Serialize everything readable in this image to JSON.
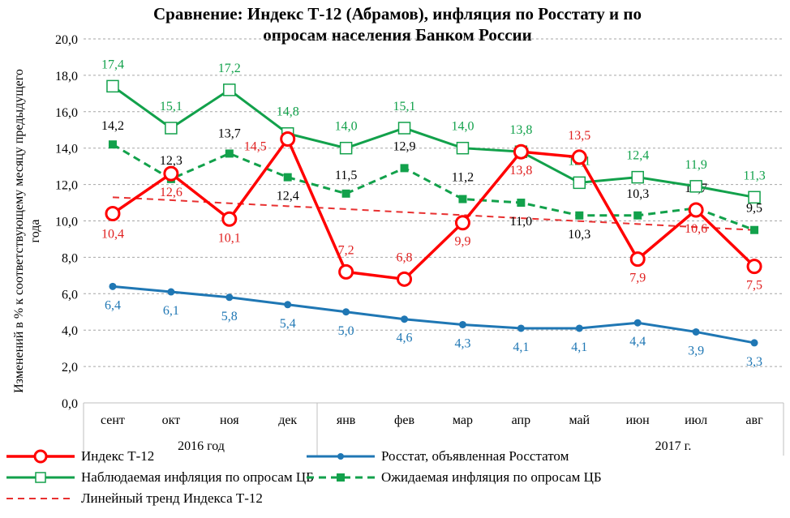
{
  "chart_data": {
    "type": "line",
    "title": "Сравнение: Индекс Т-12 (Абрамов), инфляция по Росстату и по опросам населения Банком России",
    "title_lines": [
      "Сравнение: Индекс Т-12 (Абрамов), инфляция по Росстату и по",
      "опросам населения Банком России"
    ],
    "ylabel": "Изменений в % к соответствующему месяцу предыдущего года",
    "ylabel_lines": [
      "Изменений в % к соответствующему месяцу предыдущего",
      "года"
    ],
    "ylim": [
      0,
      20
    ],
    "yticks": [
      "0,0",
      "2,0",
      "4,0",
      "6,0",
      "8,0",
      "10,0",
      "12,0",
      "14,0",
      "16,0",
      "18,0",
      "20,0"
    ],
    "grid": true,
    "categories": [
      "сент",
      "окт",
      "ноя",
      "дек",
      "янв",
      "фев",
      "мар",
      "апр",
      "май",
      "июн",
      "июл",
      "авг"
    ],
    "year_groups": [
      "2016 год",
      "2017 г."
    ],
    "legend_position": "bottom",
    "series": [
      {
        "name": "Индекс Т-12",
        "color": "#ff0000",
        "values": [
          10.4,
          12.6,
          10.1,
          14.5,
          7.2,
          6.8,
          9.9,
          13.8,
          13.5,
          7.9,
          10.6,
          7.5
        ],
        "labels": [
          "10,4",
          "12,6",
          "10,1",
          "14,5",
          "7,2",
          "6,8",
          "9,9",
          "13,8",
          "13,5",
          "7,9",
          "10,6",
          "7,5"
        ]
      },
      {
        "name": "Росстат, объявленная Росстатом",
        "color": "#1f77b4",
        "values": [
          6.4,
          6.1,
          5.8,
          5.4,
          5.0,
          4.6,
          4.3,
          4.1,
          4.1,
          4.4,
          3.9,
          3.3
        ],
        "labels": [
          "6,4",
          "6,1",
          "5,8",
          "5,4",
          "5,0",
          "4,6",
          "4,3",
          "4,1",
          "4,1",
          "4,4",
          "3,9",
          "3,3"
        ]
      },
      {
        "name": "Наблюдаемая инфляция по опросам ЦБ",
        "color": "#12a14b",
        "values": [
          17.4,
          15.1,
          17.2,
          14.8,
          14.0,
          15.1,
          14.0,
          13.8,
          12.1,
          12.4,
          11.9,
          11.3
        ],
        "labels": [
          "17,4",
          "15,1",
          "17,2",
          "14,8",
          "14,0",
          "15,1",
          "14,0",
          "13,8",
          "12,1",
          "12,4",
          "11,9",
          "11,3"
        ]
      },
      {
        "name": "Ожидаемая инфляция по опросам ЦБ",
        "color": "#12a14b",
        "values": [
          14.2,
          12.3,
          13.7,
          12.4,
          11.5,
          12.9,
          11.2,
          11.0,
          10.3,
          10.3,
          10.7,
          9.5
        ],
        "labels": [
          "14,2",
          "12,3",
          "13,7",
          "12,4",
          "11,5",
          "12,9",
          "11,2",
          "11,0",
          "10,3",
          "10,3",
          "10,7",
          "9,5"
        ]
      },
      {
        "name": "Линейный тренд Индекса Т-12",
        "color": "#e83030",
        "values": [
          11.3,
          11.14,
          10.97,
          10.81,
          10.65,
          10.48,
          10.32,
          10.15,
          9.99,
          9.83,
          9.66,
          9.5
        ]
      }
    ]
  }
}
